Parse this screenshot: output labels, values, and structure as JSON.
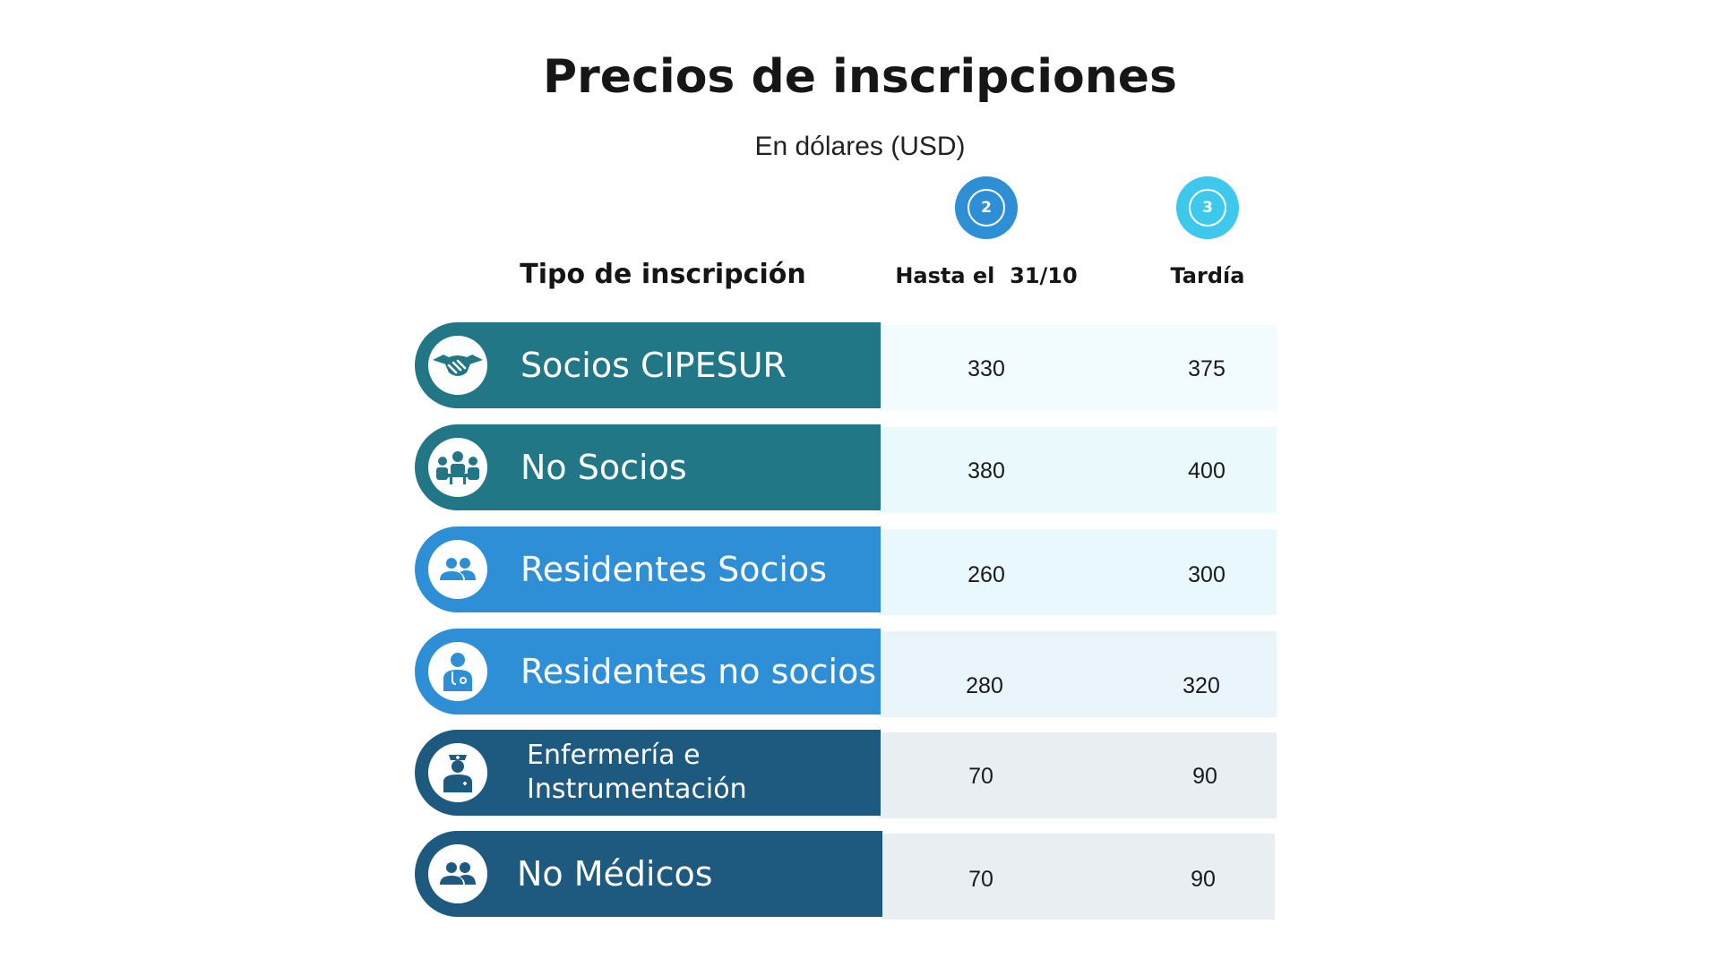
{
  "header": {
    "title": "Precios de inscripciones",
    "subtitle": "En dólares (USD)"
  },
  "columns": {
    "type_label": "Tipo de inscripción",
    "early": {
      "badge": "2",
      "label": "Hasta el  31/10"
    },
    "late": {
      "badge": "3",
      "label": "Tardía"
    }
  },
  "colors": {
    "teal": "#217785",
    "blue": "#2e8fd6",
    "navy": "#1e5a80",
    "badge_early": "#2e8fd6",
    "badge_late": "#3dc8ec"
  },
  "rows": [
    {
      "label": "Socios CIPESUR",
      "icon": "handshake-icon",
      "early": "330",
      "late": "375"
    },
    {
      "label": "No Socios",
      "icon": "meeting-people-icon",
      "early": "380",
      "late": "400"
    },
    {
      "label": "Residentes Socios",
      "icon": "people-icon",
      "early": "260",
      "late": "300"
    },
    {
      "label": "Residentes no socios",
      "icon": "doctor-icon",
      "early": "280",
      "late": "320"
    },
    {
      "label": "Enfermería e Instrumentación",
      "icon": "nurse-icon",
      "early": "70",
      "late": "90"
    },
    {
      "label": "No Médicos",
      "icon": "people-icon",
      "early": "70",
      "late": "90"
    }
  ]
}
